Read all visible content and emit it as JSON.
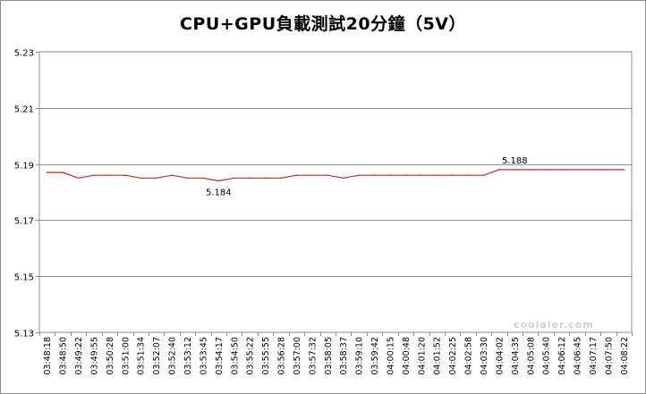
{
  "chart_data": {
    "type": "line",
    "title": "CPU+GPU負載測試20分鐘（5V）",
    "ylim": [
      5.13,
      5.23
    ],
    "yticks": [
      "5.23",
      "5.21",
      "5.19",
      "5.17",
      "5.15",
      "5.13"
    ],
    "grid": "horizontal",
    "line_color": "#c0282d",
    "x": [
      "03:48:18",
      "03:48:50",
      "03:49:22",
      "03:49:55",
      "03:50:28",
      "03:51:00",
      "03:51:34",
      "03:52:07",
      "03:52:40",
      "03:53:12",
      "03:53:45",
      "03:54:17",
      "03:54:50",
      "03:55:22",
      "03:55:55",
      "03:56:28",
      "03:57:00",
      "03:57:32",
      "03:58:05",
      "03:58:37",
      "03:59:10",
      "03:59:42",
      "04:00:15",
      "04:00:48",
      "04:01:20",
      "04:01:52",
      "04:02:25",
      "04:02:58",
      "04:03:30",
      "04:04:02",
      "04:04:35",
      "04:05:08",
      "04:05:40",
      "04:06:12",
      "04:06:45",
      "04:07:17",
      "04:07:50",
      "04:08:22"
    ],
    "series": [
      {
        "values": [
          5.187,
          5.187,
          5.185,
          5.186,
          5.186,
          5.186,
          5.185,
          5.185,
          5.186,
          5.185,
          5.185,
          5.184,
          5.185,
          5.185,
          5.185,
          5.185,
          5.186,
          5.186,
          5.186,
          5.185,
          5.186,
          5.186,
          5.186,
          5.186,
          5.186,
          5.186,
          5.186,
          5.186,
          5.186,
          5.188,
          5.188,
          5.188,
          5.188,
          5.188,
          5.188,
          5.188,
          5.188,
          5.188
        ]
      }
    ],
    "data_labels": [
      {
        "text": "5.184",
        "index": 11
      },
      {
        "text": "5.188",
        "index": 30
      }
    ]
  },
  "watermark": "coolaler.com"
}
